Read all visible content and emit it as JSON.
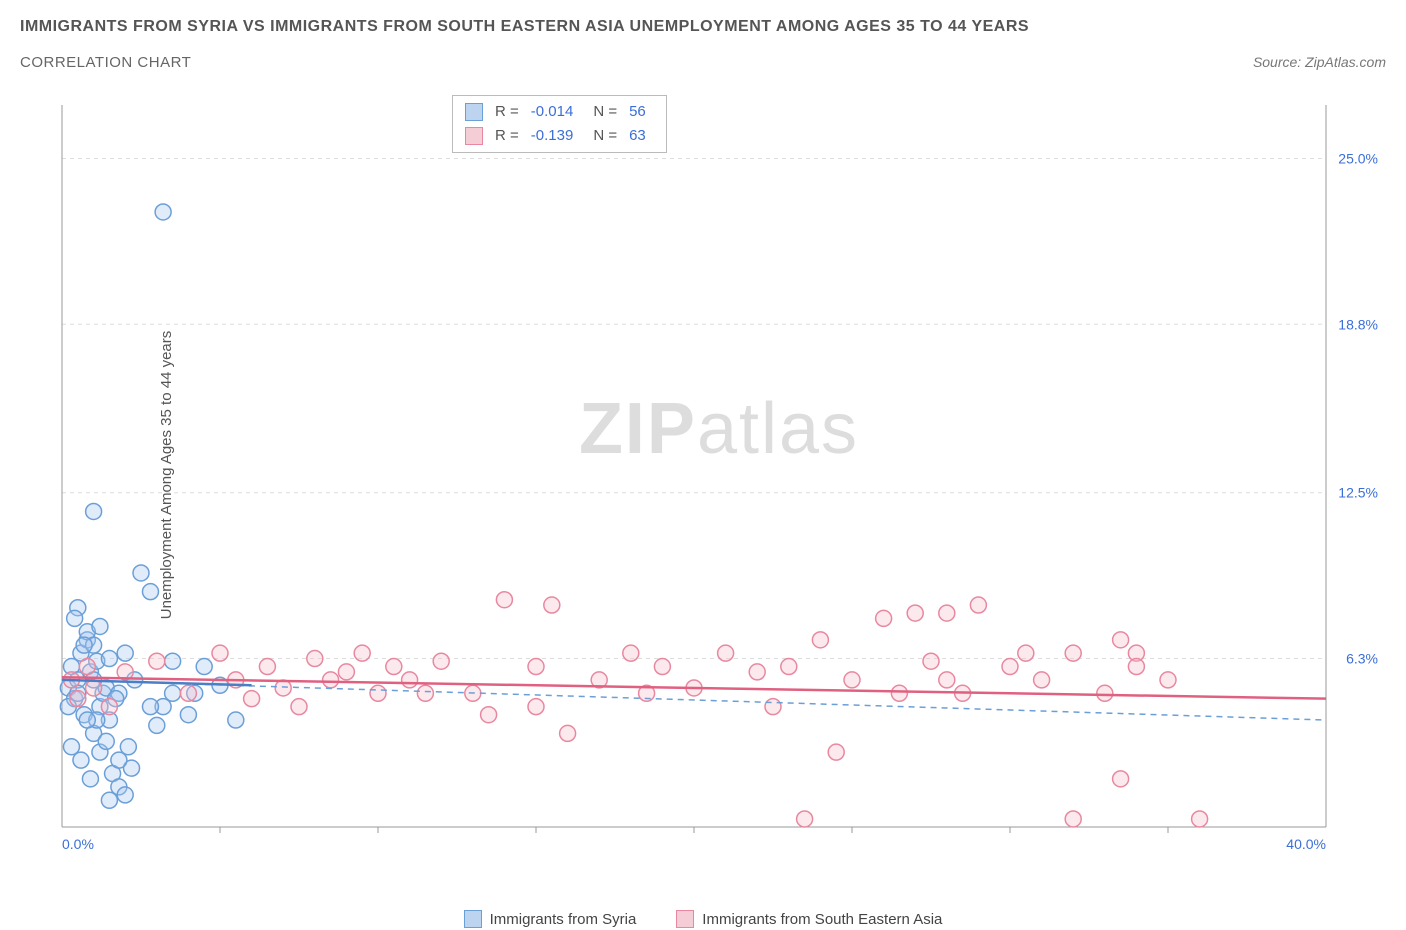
{
  "header": {
    "title": "IMMIGRANTS FROM SYRIA VS IMMIGRANTS FROM SOUTH EASTERN ASIA UNEMPLOYMENT AMONG AGES 35 TO 44 YEARS",
    "subtitle": "CORRELATION CHART",
    "source": "Source: ZipAtlas.com"
  },
  "watermark": {
    "bold": "ZIP",
    "light": "atlas"
  },
  "chart": {
    "type": "scatter",
    "y_label": "Unemployment Among Ages 35 to 44 years",
    "xlim": [
      0,
      40
    ],
    "ylim": [
      0,
      27
    ],
    "x_ticks": [
      {
        "v": 0,
        "label": "0.0%"
      },
      {
        "v": 40,
        "label": "40.0%"
      }
    ],
    "y_ticks": [
      {
        "v": 6.3,
        "label": "6.3%"
      },
      {
        "v": 12.5,
        "label": "12.5%"
      },
      {
        "v": 18.8,
        "label": "18.8%"
      },
      {
        "v": 25.0,
        "label": "25.0%"
      }
    ],
    "x_minor_ticks": [
      5,
      10,
      15,
      20,
      25,
      30,
      35
    ],
    "background_color": "#ffffff",
    "grid_color": "#dddddd",
    "axis_color": "#999999",
    "marker_radius": 8,
    "series": [
      {
        "name": "Immigrants from Syria",
        "color_fill": "#a8c8f0",
        "color_stroke": "#6b9fd8",
        "swatch_fill": "#bdd4f0",
        "swatch_stroke": "#6b9fd8",
        "R": "-0.014",
        "N": "56",
        "trend": {
          "y_at_x0": 5.5,
          "y_at_xmax": 4.0,
          "style": "dashed",
          "stroke": "#6b9fd8"
        },
        "trend_solid_short": {
          "x0": 0,
          "y0": 5.5,
          "x1": 6,
          "y1": 5.3,
          "stroke": "#4a7fc8"
        },
        "points": [
          [
            0.2,
            5.2
          ],
          [
            0.3,
            6.0
          ],
          [
            0.4,
            4.8
          ],
          [
            0.5,
            5.5
          ],
          [
            0.6,
            6.5
          ],
          [
            0.7,
            4.2
          ],
          [
            0.8,
            7.0
          ],
          [
            0.9,
            5.8
          ],
          [
            1.0,
            3.5
          ],
          [
            1.1,
            6.2
          ],
          [
            1.2,
            4.5
          ],
          [
            1.3,
            5.0
          ],
          [
            0.5,
            8.2
          ],
          [
            0.8,
            7.3
          ],
          [
            1.0,
            6.8
          ],
          [
            1.2,
            7.5
          ],
          [
            1.4,
            5.2
          ],
          [
            1.5,
            4.0
          ],
          [
            1.6,
            2.0
          ],
          [
            1.8,
            1.5
          ],
          [
            2.0,
            1.2
          ],
          [
            2.2,
            2.2
          ],
          [
            1.0,
            11.8
          ],
          [
            2.5,
            9.5
          ],
          [
            2.8,
            8.8
          ],
          [
            3.0,
            3.8
          ],
          [
            3.2,
            4.5
          ],
          [
            3.5,
            5.0
          ],
          [
            4.0,
            4.2
          ],
          [
            4.5,
            6.0
          ],
          [
            5.0,
            5.3
          ],
          [
            5.5,
            4.0
          ],
          [
            1.5,
            6.3
          ],
          [
            1.8,
            5.0
          ],
          [
            2.0,
            6.5
          ],
          [
            0.3,
            3.0
          ],
          [
            0.6,
            2.5
          ],
          [
            0.9,
            1.8
          ],
          [
            1.2,
            2.8
          ],
          [
            0.4,
            7.8
          ],
          [
            0.7,
            6.8
          ],
          [
            1.1,
            4.0
          ],
          [
            1.4,
            3.2
          ],
          [
            1.7,
            4.8
          ],
          [
            2.3,
            5.5
          ],
          [
            0.2,
            4.5
          ],
          [
            0.5,
            5.0
          ],
          [
            0.8,
            4.0
          ],
          [
            2.8,
            4.5
          ],
          [
            3.5,
            6.2
          ],
          [
            4.2,
            5.0
          ],
          [
            3.2,
            23.0
          ],
          [
            1.5,
            1.0
          ],
          [
            1.8,
            2.5
          ],
          [
            2.1,
            3.0
          ],
          [
            1.0,
            5.5
          ]
        ]
      },
      {
        "name": "Immigrants from South Eastern Asia",
        "color_fill": "#f5c0cc",
        "color_stroke": "#e888a0",
        "swatch_fill": "#f5cdd6",
        "swatch_stroke": "#e888a0",
        "R": "-0.139",
        "N": "63",
        "trend": {
          "y_at_x0": 5.6,
          "y_at_xmax": 4.8,
          "style": "solid",
          "stroke": "#e06080"
        },
        "points": [
          [
            0.3,
            5.5
          ],
          [
            0.5,
            4.8
          ],
          [
            0.8,
            6.0
          ],
          [
            1.0,
            5.2
          ],
          [
            1.5,
            4.5
          ],
          [
            2.0,
            5.8
          ],
          [
            3.0,
            6.2
          ],
          [
            4.0,
            5.0
          ],
          [
            5.0,
            6.5
          ],
          [
            5.5,
            5.5
          ],
          [
            6.0,
            4.8
          ],
          [
            6.5,
            6.0
          ],
          [
            7.0,
            5.2
          ],
          [
            7.5,
            4.5
          ],
          [
            8.0,
            6.3
          ],
          [
            9.0,
            5.8
          ],
          [
            9.5,
            6.5
          ],
          [
            10.0,
            5.0
          ],
          [
            10.5,
            6.0
          ],
          [
            11.0,
            5.5
          ],
          [
            12.0,
            6.2
          ],
          [
            13.0,
            5.0
          ],
          [
            13.5,
            4.2
          ],
          [
            14.0,
            8.5
          ],
          [
            15.0,
            6.0
          ],
          [
            15.5,
            8.3
          ],
          [
            16.0,
            3.5
          ],
          [
            17.0,
            5.5
          ],
          [
            18.0,
            6.5
          ],
          [
            18.5,
            5.0
          ],
          [
            19.0,
            6.0
          ],
          [
            20.0,
            5.2
          ],
          [
            21.0,
            6.5
          ],
          [
            22.0,
            5.8
          ],
          [
            22.5,
            4.5
          ],
          [
            23.0,
            6.0
          ],
          [
            24.0,
            7.0
          ],
          [
            24.5,
            2.8
          ],
          [
            25.0,
            5.5
          ],
          [
            26.0,
            7.8
          ],
          [
            27.0,
            8.0
          ],
          [
            27.5,
            6.2
          ],
          [
            28.0,
            8.0
          ],
          [
            28.5,
            5.0
          ],
          [
            29.0,
            8.3
          ],
          [
            30.0,
            6.0
          ],
          [
            31.0,
            5.5
          ],
          [
            32.0,
            6.5
          ],
          [
            33.0,
            5.0
          ],
          [
            33.5,
            7.0
          ],
          [
            34.0,
            6.5
          ],
          [
            35.0,
            5.5
          ],
          [
            33.5,
            1.8
          ],
          [
            32.0,
            0.3
          ],
          [
            36.0,
            0.3
          ],
          [
            34.0,
            6.0
          ],
          [
            28.0,
            5.5
          ],
          [
            15.0,
            4.5
          ],
          [
            11.5,
            5.0
          ],
          [
            8.5,
            5.5
          ],
          [
            26.5,
            5.0
          ],
          [
            30.5,
            6.5
          ],
          [
            23.5,
            0.3
          ]
        ]
      }
    ],
    "legend": {
      "items": [
        {
          "label": "Immigrants from Syria",
          "fill": "#bdd4f0",
          "stroke": "#6b9fd8"
        },
        {
          "label": "Immigrants from South Eastern Asia",
          "fill": "#f5cdd6",
          "stroke": "#e888a0"
        }
      ]
    }
  }
}
